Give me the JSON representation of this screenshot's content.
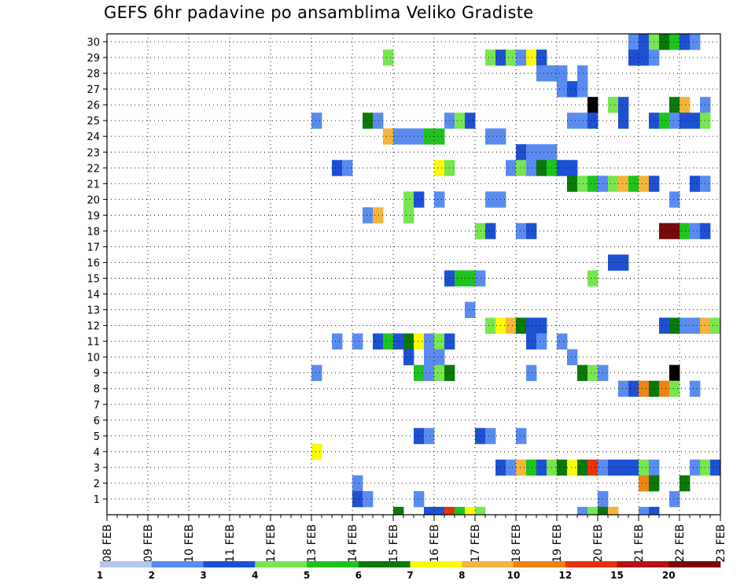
{
  "chart_data": {
    "type": "heatmap",
    "title": "GEFS 6hr padavine po ansamblima Veliko Gradiste",
    "xlabel": "",
    "ylabel": "",
    "x_tick_labels": [
      "08 FEB",
      "09 FEB",
      "10 FEB",
      "11 FEB",
      "12 FEB",
      "13 FEB",
      "14 FEB",
      "15 FEB",
      "16 FEB",
      "17 FEB",
      "18 FEB",
      "19 FEB",
      "20 FEB",
      "21 FEB",
      "22 FEB",
      "23 FEB"
    ],
    "y_tick_labels": [
      1,
      2,
      3,
      4,
      5,
      6,
      7,
      8,
      9,
      10,
      11,
      12,
      13,
      14,
      15,
      16,
      17,
      18,
      19,
      20,
      21,
      22,
      23,
      24,
      25,
      26,
      27,
      28,
      29,
      30
    ],
    "member_range": [
      0,
      30
    ],
    "time_steps_per_day": 4,
    "grid": "dotted",
    "legend_position": "bottom",
    "color_scale": {
      "tick_labels": [
        "1",
        "2",
        "3",
        "4",
        "5",
        "6",
        "7",
        "8",
        "10",
        "12",
        "15",
        "20"
      ],
      "colors": [
        "#b4c6f0",
        "#5a8cf0",
        "#1e50d2",
        "#78e650",
        "#1ec31e",
        "#0a780a",
        "#fafa0a",
        "#f5b43c",
        "#f08214",
        "#e6320a",
        "#b41414",
        "#780a0a"
      ]
    },
    "cells": [
      [
        30,
        51,
        1
      ],
      [
        30,
        52,
        2
      ],
      [
        30,
        53,
        3
      ],
      [
        30,
        54,
        5
      ],
      [
        30,
        55,
        4
      ],
      [
        30,
        56,
        2
      ],
      [
        30,
        57,
        1
      ],
      [
        29,
        27,
        3
      ],
      [
        29,
        37,
        3
      ],
      [
        29,
        38,
        2
      ],
      [
        29,
        39,
        3
      ],
      [
        29,
        40,
        1
      ],
      [
        29,
        41,
        6
      ],
      [
        29,
        42,
        2
      ],
      [
        29,
        51,
        2
      ],
      [
        29,
        52,
        2
      ],
      [
        29,
        53,
        1
      ],
      [
        28,
        42,
        1
      ],
      [
        28,
        43,
        1
      ],
      [
        28,
        44,
        1
      ],
      [
        28,
        46,
        1
      ],
      [
        27,
        44,
        1
      ],
      [
        27,
        45,
        2
      ],
      [
        27,
        46,
        1
      ],
      [
        26,
        47,
        14
      ],
      [
        26,
        49,
        3
      ],
      [
        26,
        50,
        2
      ],
      [
        26,
        55,
        5
      ],
      [
        26,
        56,
        7
      ],
      [
        26,
        58,
        1
      ],
      [
        25,
        20,
        1
      ],
      [
        25,
        25,
        5
      ],
      [
        25,
        26,
        1
      ],
      [
        25,
        33,
        1
      ],
      [
        25,
        34,
        3
      ],
      [
        25,
        35,
        2
      ],
      [
        25,
        45,
        1
      ],
      [
        25,
        46,
        1
      ],
      [
        25,
        47,
        2
      ],
      [
        25,
        50,
        2
      ],
      [
        25,
        53,
        2
      ],
      [
        25,
        54,
        4
      ],
      [
        25,
        55,
        1
      ],
      [
        25,
        56,
        2
      ],
      [
        25,
        57,
        2
      ],
      [
        25,
        58,
        3
      ],
      [
        24,
        27,
        7
      ],
      [
        24,
        28,
        1
      ],
      [
        24,
        29,
        1
      ],
      [
        24,
        30,
        1
      ],
      [
        24,
        31,
        4
      ],
      [
        24,
        32,
        4
      ],
      [
        24,
        37,
        1
      ],
      [
        24,
        38,
        1
      ],
      [
        23,
        40,
        2
      ],
      [
        23,
        41,
        1
      ],
      [
        23,
        42,
        1
      ],
      [
        23,
        43,
        1
      ],
      [
        22,
        22,
        2
      ],
      [
        22,
        23,
        1
      ],
      [
        22,
        32,
        6
      ],
      [
        22,
        33,
        3
      ],
      [
        22,
        39,
        1
      ],
      [
        22,
        40,
        3
      ],
      [
        22,
        41,
        1
      ],
      [
        22,
        42,
        5
      ],
      [
        22,
        43,
        4
      ],
      [
        22,
        44,
        2
      ],
      [
        22,
        45,
        2
      ],
      [
        21,
        45,
        5
      ],
      [
        21,
        46,
        3
      ],
      [
        21,
        47,
        4
      ],
      [
        21,
        48,
        1
      ],
      [
        21,
        49,
        3
      ],
      [
        21,
        50,
        7
      ],
      [
        21,
        51,
        4
      ],
      [
        21,
        52,
        7
      ],
      [
        21,
        53,
        2
      ],
      [
        21,
        57,
        2
      ],
      [
        21,
        58,
        1
      ],
      [
        20,
        29,
        3
      ],
      [
        20,
        30,
        2
      ],
      [
        20,
        32,
        1
      ],
      [
        20,
        37,
        1
      ],
      [
        20,
        38,
        1
      ],
      [
        20,
        55,
        1
      ],
      [
        19,
        25,
        1
      ],
      [
        19,
        26,
        7
      ],
      [
        19,
        29,
        3
      ],
      [
        18,
        36,
        3
      ],
      [
        18,
        37,
        2
      ],
      [
        18,
        40,
        1
      ],
      [
        18,
        41,
        2
      ],
      [
        18,
        54,
        11
      ],
      [
        18,
        55,
        11
      ],
      [
        18,
        56,
        4
      ],
      [
        18,
        57,
        1
      ],
      [
        18,
        58,
        2
      ],
      [
        16,
        49,
        2
      ],
      [
        16,
        50,
        2
      ],
      [
        15,
        33,
        2
      ],
      [
        15,
        34,
        4
      ],
      [
        15,
        35,
        4
      ],
      [
        15,
        36,
        1
      ],
      [
        15,
        47,
        3
      ],
      [
        13,
        35,
        1
      ],
      [
        12,
        37,
        3
      ],
      [
        12,
        38,
        6
      ],
      [
        12,
        39,
        7
      ],
      [
        12,
        40,
        5
      ],
      [
        12,
        41,
        2
      ],
      [
        12,
        42,
        2
      ],
      [
        12,
        54,
        2
      ],
      [
        12,
        55,
        5
      ],
      [
        12,
        56,
        1
      ],
      [
        12,
        57,
        1
      ],
      [
        12,
        58,
        7
      ],
      [
        12,
        59,
        3
      ],
      [
        11,
        22,
        1
      ],
      [
        11,
        24,
        1
      ],
      [
        11,
        26,
        2
      ],
      [
        11,
        27,
        4
      ],
      [
        11,
        28,
        2
      ],
      [
        11,
        29,
        5
      ],
      [
        11,
        30,
        6
      ],
      [
        11,
        31,
        1
      ],
      [
        11,
        32,
        3
      ],
      [
        11,
        33,
        2
      ],
      [
        11,
        41,
        2
      ],
      [
        11,
        42,
        1
      ],
      [
        11,
        44,
        1
      ],
      [
        10,
        29,
        2
      ],
      [
        10,
        31,
        1
      ],
      [
        10,
        32,
        1
      ],
      [
        10,
        45,
        1
      ],
      [
        9,
        20,
        1
      ],
      [
        9,
        30,
        4
      ],
      [
        9,
        31,
        1
      ],
      [
        9,
        32,
        3
      ],
      [
        9,
        33,
        5
      ],
      [
        9,
        41,
        1
      ],
      [
        9,
        46,
        5
      ],
      [
        9,
        47,
        3
      ],
      [
        9,
        48,
        1
      ],
      [
        9,
        55,
        12
      ],
      [
        8,
        50,
        1
      ],
      [
        8,
        51,
        2
      ],
      [
        8,
        52,
        8
      ],
      [
        8,
        53,
        5
      ],
      [
        8,
        54,
        8
      ],
      [
        8,
        55,
        3
      ],
      [
        8,
        57,
        1
      ],
      [
        5,
        30,
        2
      ],
      [
        5,
        31,
        1
      ],
      [
        5,
        36,
        2
      ],
      [
        5,
        37,
        1
      ],
      [
        5,
        40,
        1
      ],
      [
        4,
        20,
        6
      ],
      [
        3,
        38,
        2
      ],
      [
        3,
        39,
        1
      ],
      [
        3,
        40,
        7
      ],
      [
        3,
        41,
        4
      ],
      [
        3,
        42,
        2
      ],
      [
        3,
        43,
        3
      ],
      [
        3,
        44,
        5
      ],
      [
        3,
        45,
        6
      ],
      [
        3,
        46,
        5
      ],
      [
        3,
        47,
        9
      ],
      [
        3,
        48,
        1
      ],
      [
        3,
        49,
        2
      ],
      [
        3,
        50,
        2
      ],
      [
        3,
        51,
        2
      ],
      [
        3,
        52,
        3
      ],
      [
        3,
        53,
        1
      ],
      [
        3,
        57,
        1
      ],
      [
        3,
        58,
        3
      ],
      [
        3,
        59,
        2
      ],
      [
        2,
        24,
        1
      ],
      [
        2,
        52,
        8
      ],
      [
        2,
        53,
        5
      ],
      [
        2,
        56,
        5
      ],
      [
        1,
        24,
        2
      ],
      [
        1,
        25,
        1
      ],
      [
        1,
        30,
        1
      ],
      [
        1,
        48,
        1
      ],
      [
        1,
        55,
        1
      ],
      [
        0,
        28,
        5
      ],
      [
        0,
        31,
        2
      ],
      [
        0,
        32,
        2
      ],
      [
        0,
        33,
        9
      ],
      [
        0,
        34,
        4
      ],
      [
        0,
        35,
        6
      ],
      [
        0,
        36,
        3
      ],
      [
        0,
        46,
        1
      ],
      [
        0,
        47,
        3
      ],
      [
        0,
        48,
        5
      ],
      [
        0,
        49,
        7
      ],
      [
        0,
        52,
        1
      ],
      [
        0,
        53,
        2
      ]
    ]
  }
}
